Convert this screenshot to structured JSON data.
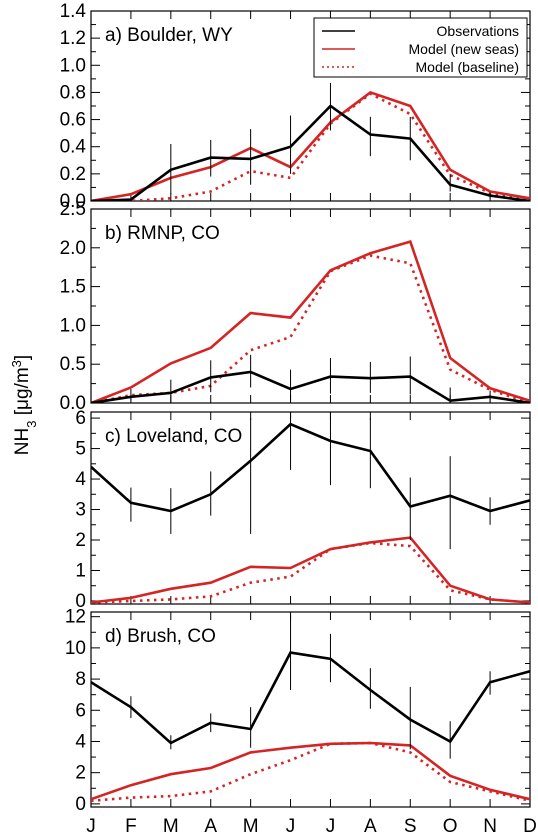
{
  "ylabel": {
    "prefix": "NH",
    "sub": "3",
    "mid": " [μg/m",
    "sup": "3",
    "suffix": "]"
  },
  "months": [
    "J",
    "F",
    "M",
    "A",
    "M",
    "J",
    "J",
    "A",
    "S",
    "O",
    "N",
    "D"
  ],
  "legend": {
    "observations": "Observations",
    "model_new": "Model (new seas)",
    "model_baseline": "Model (baseline)"
  },
  "colors": {
    "observations": "#000000",
    "model": "#d42424"
  },
  "chart_data": [
    {
      "type": "line",
      "title": "a) Boulder, WY",
      "ylim": [
        0,
        1.4
      ],
      "yticks": [
        "0.0",
        "0.2",
        "0.4",
        "0.6",
        "0.8",
        "1.0",
        "1.2",
        "1.4"
      ],
      "categories": [
        "J",
        "F",
        "M",
        "A",
        "M",
        "J",
        "J",
        "A",
        "S",
        "O",
        "N",
        "D"
      ],
      "series": [
        {
          "name": "Observations",
          "style": "solid-black",
          "values": [
            0.0,
            0.01,
            0.23,
            0.32,
            0.31,
            0.4,
            0.7,
            0.49,
            0.46,
            0.12,
            0.04,
            0.0
          ],
          "err_low": [
            null,
            null,
            0.05,
            0.18,
            0.12,
            0.2,
            0.52,
            0.33,
            0.3,
            0.07,
            0.02,
            null
          ],
          "err_high": [
            null,
            null,
            0.42,
            0.45,
            0.53,
            0.63,
            0.87,
            0.62,
            0.62,
            0.2,
            0.06,
            null
          ]
        },
        {
          "name": "Model (new seas)",
          "style": "solid-red",
          "values": [
            0.0,
            0.05,
            0.17,
            0.25,
            0.39,
            0.25,
            0.58,
            0.8,
            0.7,
            0.23,
            0.07,
            0.02
          ]
        },
        {
          "name": "Model (baseline)",
          "style": "dotted-red",
          "values": [
            0.0,
            0.0,
            0.02,
            0.07,
            0.22,
            0.17,
            0.57,
            0.79,
            0.64,
            0.19,
            0.06,
            0.0
          ]
        }
      ]
    },
    {
      "type": "line",
      "title": "b) RMNP, CO",
      "ylim": [
        0,
        2.5
      ],
      "yticks": [
        "0.0",
        "0.5",
        "1.0",
        "1.5",
        "2.0",
        "2.5"
      ],
      "categories": [
        "J",
        "F",
        "M",
        "A",
        "M",
        "J",
        "J",
        "A",
        "S",
        "O",
        "N",
        "D"
      ],
      "series": [
        {
          "name": "Observations",
          "style": "solid-black",
          "values": [
            0.0,
            0.08,
            0.13,
            0.33,
            0.4,
            0.18,
            0.34,
            0.32,
            0.34,
            0.03,
            0.08,
            0.0
          ],
          "err_low": [
            null,
            0.03,
            0.0,
            0.14,
            0.2,
            0.04,
            0.12,
            0.13,
            0.11,
            0.0,
            0.01,
            null
          ],
          "err_high": [
            null,
            0.18,
            0.3,
            0.55,
            0.62,
            0.43,
            0.58,
            0.53,
            0.6,
            0.2,
            0.16,
            null
          ]
        },
        {
          "name": "Model (new seas)",
          "style": "solid-red",
          "values": [
            0.0,
            0.2,
            0.51,
            0.71,
            1.16,
            1.1,
            1.71,
            1.93,
            2.08,
            0.58,
            0.19,
            0.03
          ]
        },
        {
          "name": "Model (baseline)",
          "style": "dotted-red",
          "values": [
            0.0,
            0.1,
            0.13,
            0.22,
            0.68,
            0.85,
            1.7,
            1.9,
            1.8,
            0.43,
            0.17,
            0.0
          ]
        }
      ]
    },
    {
      "type": "line",
      "title": "c) Loveland, CO",
      "ylim": [
        -0.1,
        6.2
      ],
      "yticks": [
        "0",
        "1",
        "2",
        "3",
        "4",
        "5",
        "6"
      ],
      "categories": [
        "J",
        "F",
        "M",
        "A",
        "M",
        "J",
        "J",
        "A",
        "S",
        "O",
        "N",
        "D"
      ],
      "series": [
        {
          "name": "Observations",
          "style": "solid-black",
          "values": [
            4.4,
            3.22,
            2.95,
            3.5,
            4.6,
            5.8,
            5.25,
            4.92,
            3.1,
            3.45,
            2.95,
            3.3
          ],
          "err_low": [
            null,
            2.6,
            2.2,
            2.8,
            2.2,
            4.3,
            3.8,
            3.7,
            2.0,
            1.7,
            2.5,
            null
          ],
          "err_high": [
            null,
            3.72,
            3.7,
            4.25,
            6.0,
            6.2,
            6.2,
            6.0,
            4.05,
            4.75,
            3.4,
            null
          ]
        },
        {
          "name": "Model (new seas)",
          "style": "solid-red",
          "values": [
            -0.05,
            0.1,
            0.4,
            0.6,
            1.12,
            1.08,
            1.7,
            1.92,
            2.08,
            0.5,
            0.05,
            -0.05
          ]
        },
        {
          "name": "Model (baseline)",
          "style": "dotted-red",
          "values": [
            -0.05,
            0.0,
            0.05,
            0.15,
            0.6,
            0.8,
            1.7,
            1.9,
            1.8,
            0.35,
            0.05,
            -0.05
          ]
        }
      ]
    },
    {
      "type": "line",
      "title": "d) Brush, CO",
      "ylim": [
        -0.2,
        12.3
      ],
      "yticks": [
        "0",
        "2",
        "4",
        "6",
        "8",
        "10",
        "12"
      ],
      "categories": [
        "J",
        "F",
        "M",
        "A",
        "M",
        "J",
        "J",
        "A",
        "S",
        "O",
        "N",
        "D"
      ],
      "series": [
        {
          "name": "Observations",
          "style": "solid-black",
          "values": [
            7.8,
            6.2,
            3.9,
            5.2,
            4.8,
            9.7,
            9.3,
            7.3,
            5.4,
            4.0,
            7.8,
            8.5
          ],
          "err_low": [
            null,
            5.5,
            3.5,
            4.6,
            3.6,
            7.3,
            7.8,
            6.1,
            3.5,
            2.9,
            7.0,
            null
          ],
          "err_high": [
            null,
            6.9,
            4.4,
            5.8,
            6.2,
            12.2,
            10.9,
            8.7,
            7.5,
            5.3,
            8.5,
            null
          ]
        },
        {
          "name": "Model (new seas)",
          "style": "solid-red",
          "values": [
            0.3,
            1.2,
            1.9,
            2.3,
            3.3,
            3.6,
            3.85,
            3.9,
            3.75,
            1.8,
            0.9,
            0.3
          ]
        },
        {
          "name": "Model (baseline)",
          "style": "dotted-red",
          "values": [
            0.2,
            0.4,
            0.5,
            0.8,
            1.9,
            2.8,
            3.85,
            3.9,
            3.3,
            1.4,
            0.8,
            0.2
          ]
        }
      ]
    }
  ]
}
